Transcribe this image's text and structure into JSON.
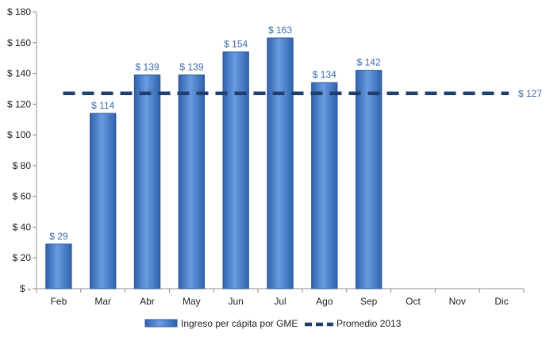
{
  "chart_data": {
    "type": "bar",
    "categories": [
      "Feb",
      "Mar",
      "Abr",
      "May",
      "Jun",
      "Jul",
      "Ago",
      "Sep",
      "Oct",
      "Nov",
      "Dic"
    ],
    "series": [
      {
        "name": "Ingreso per cápita por GME",
        "type": "bar",
        "values": [
          29,
          114,
          139,
          139,
          154,
          163,
          134,
          142,
          null,
          null,
          null
        ],
        "data_labels": [
          "$ 29",
          "$ 114",
          "$ 139",
          "$ 139",
          "$ 154",
          "$ 163",
          "$ 134",
          "$ 142"
        ]
      },
      {
        "name": "Promedio 2013",
        "type": "line",
        "style": "dashed",
        "value": 127,
        "data_label": "$ 127"
      }
    ],
    "ylim": [
      0,
      180
    ],
    "yticks": [
      0,
      20,
      40,
      60,
      80,
      100,
      120,
      140,
      160,
      180
    ],
    "ytick_labels": [
      "$ -",
      "$ 20",
      "$ 40",
      "$ 60",
      "$ 80",
      "$ 100",
      "$ 120",
      "$ 140",
      "$ 160",
      "$ 180"
    ],
    "title": "",
    "xlabel": "",
    "ylabel": "",
    "grid": false,
    "legend_position": "bottom",
    "colors": {
      "bar_fill": "#3d74c4",
      "bar_highlight": "#6b9be0",
      "bar_edge": "#2b5797",
      "average_line": "#1f3f6e",
      "data_label": "#3a6aa8",
      "axis": "#8c8c8c"
    }
  }
}
